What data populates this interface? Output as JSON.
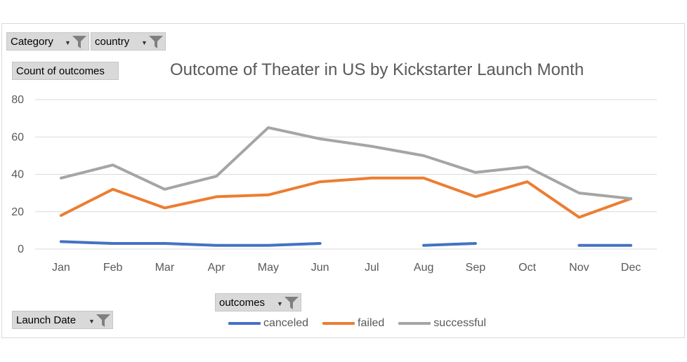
{
  "filters": {
    "category": "Category",
    "country": "country",
    "count_of_outcomes": "Count of outcomes",
    "launch_date": "Launch Date",
    "outcomes": "outcomes"
  },
  "colors": {
    "canceled": "#4472c4",
    "failed": "#ed7d31",
    "successful": "#a5a5a5",
    "gridline": "#d9d9d9",
    "axis_text": "#595959"
  },
  "chart_data": {
    "type": "line",
    "title": "Outcome of Theater in US by Kickstarter Launch Month",
    "xlabel": "",
    "ylabel": "",
    "categories": [
      "Jan",
      "Feb",
      "Mar",
      "Apr",
      "May",
      "Jun",
      "Jul",
      "Aug",
      "Sep",
      "Oct",
      "Nov",
      "Dec"
    ],
    "ylim": [
      0,
      80
    ],
    "yticks": [
      "0",
      "20",
      "40",
      "60",
      "80"
    ],
    "grid": true,
    "legend_position": "bottom",
    "series": [
      {
        "name": "canceled",
        "values": [
          4,
          3,
          3,
          2,
          2,
          3,
          null,
          2,
          3,
          null,
          2,
          2
        ]
      },
      {
        "name": "failed",
        "values": [
          18,
          32,
          22,
          28,
          29,
          36,
          38,
          38,
          28,
          36,
          17,
          27
        ]
      },
      {
        "name": "successful",
        "values": [
          38,
          45,
          32,
          39,
          65,
          59,
          55,
          50,
          41,
          44,
          30,
          27
        ]
      }
    ]
  }
}
